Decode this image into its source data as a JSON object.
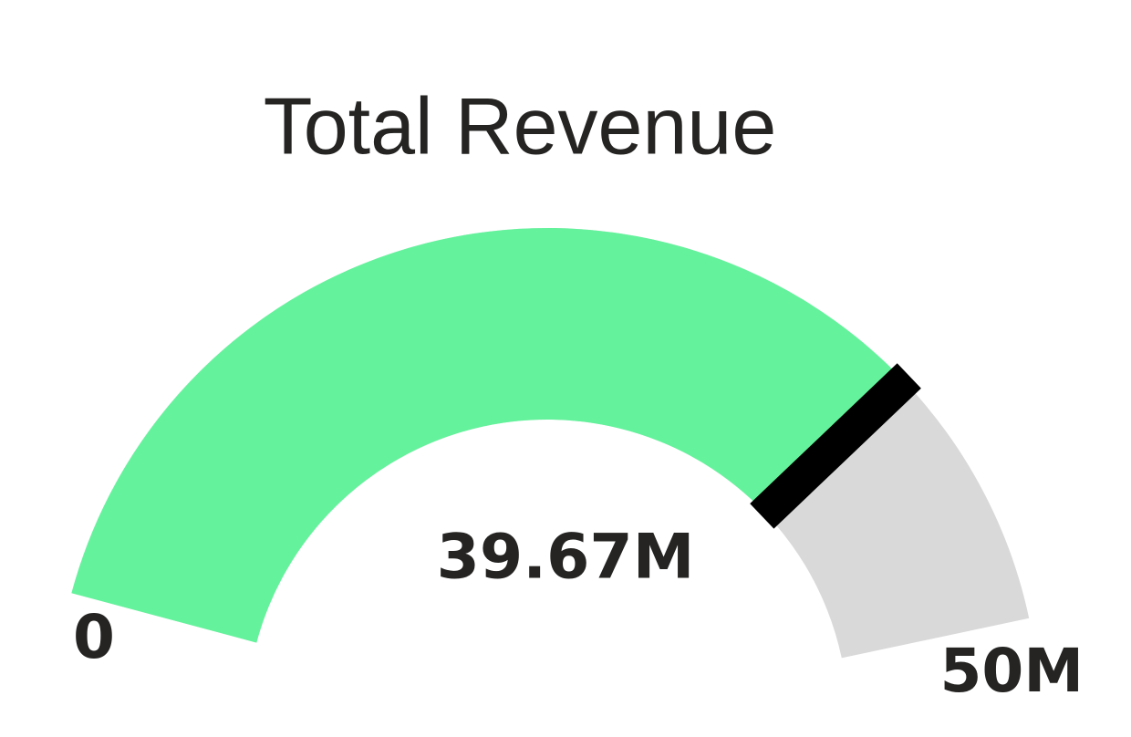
{
  "chart_data": {
    "type": "gauge",
    "title": "Total Revenue",
    "value": 39670000,
    "value_label": "39.67M",
    "range": [
      0,
      50000000
    ],
    "ticks": [
      0,
      {
        "value": 50000000,
        "label": "50M"
      }
    ],
    "fill_color": "#64f39c",
    "track_color": "#d9d9d9",
    "needle_color": "#000000"
  }
}
